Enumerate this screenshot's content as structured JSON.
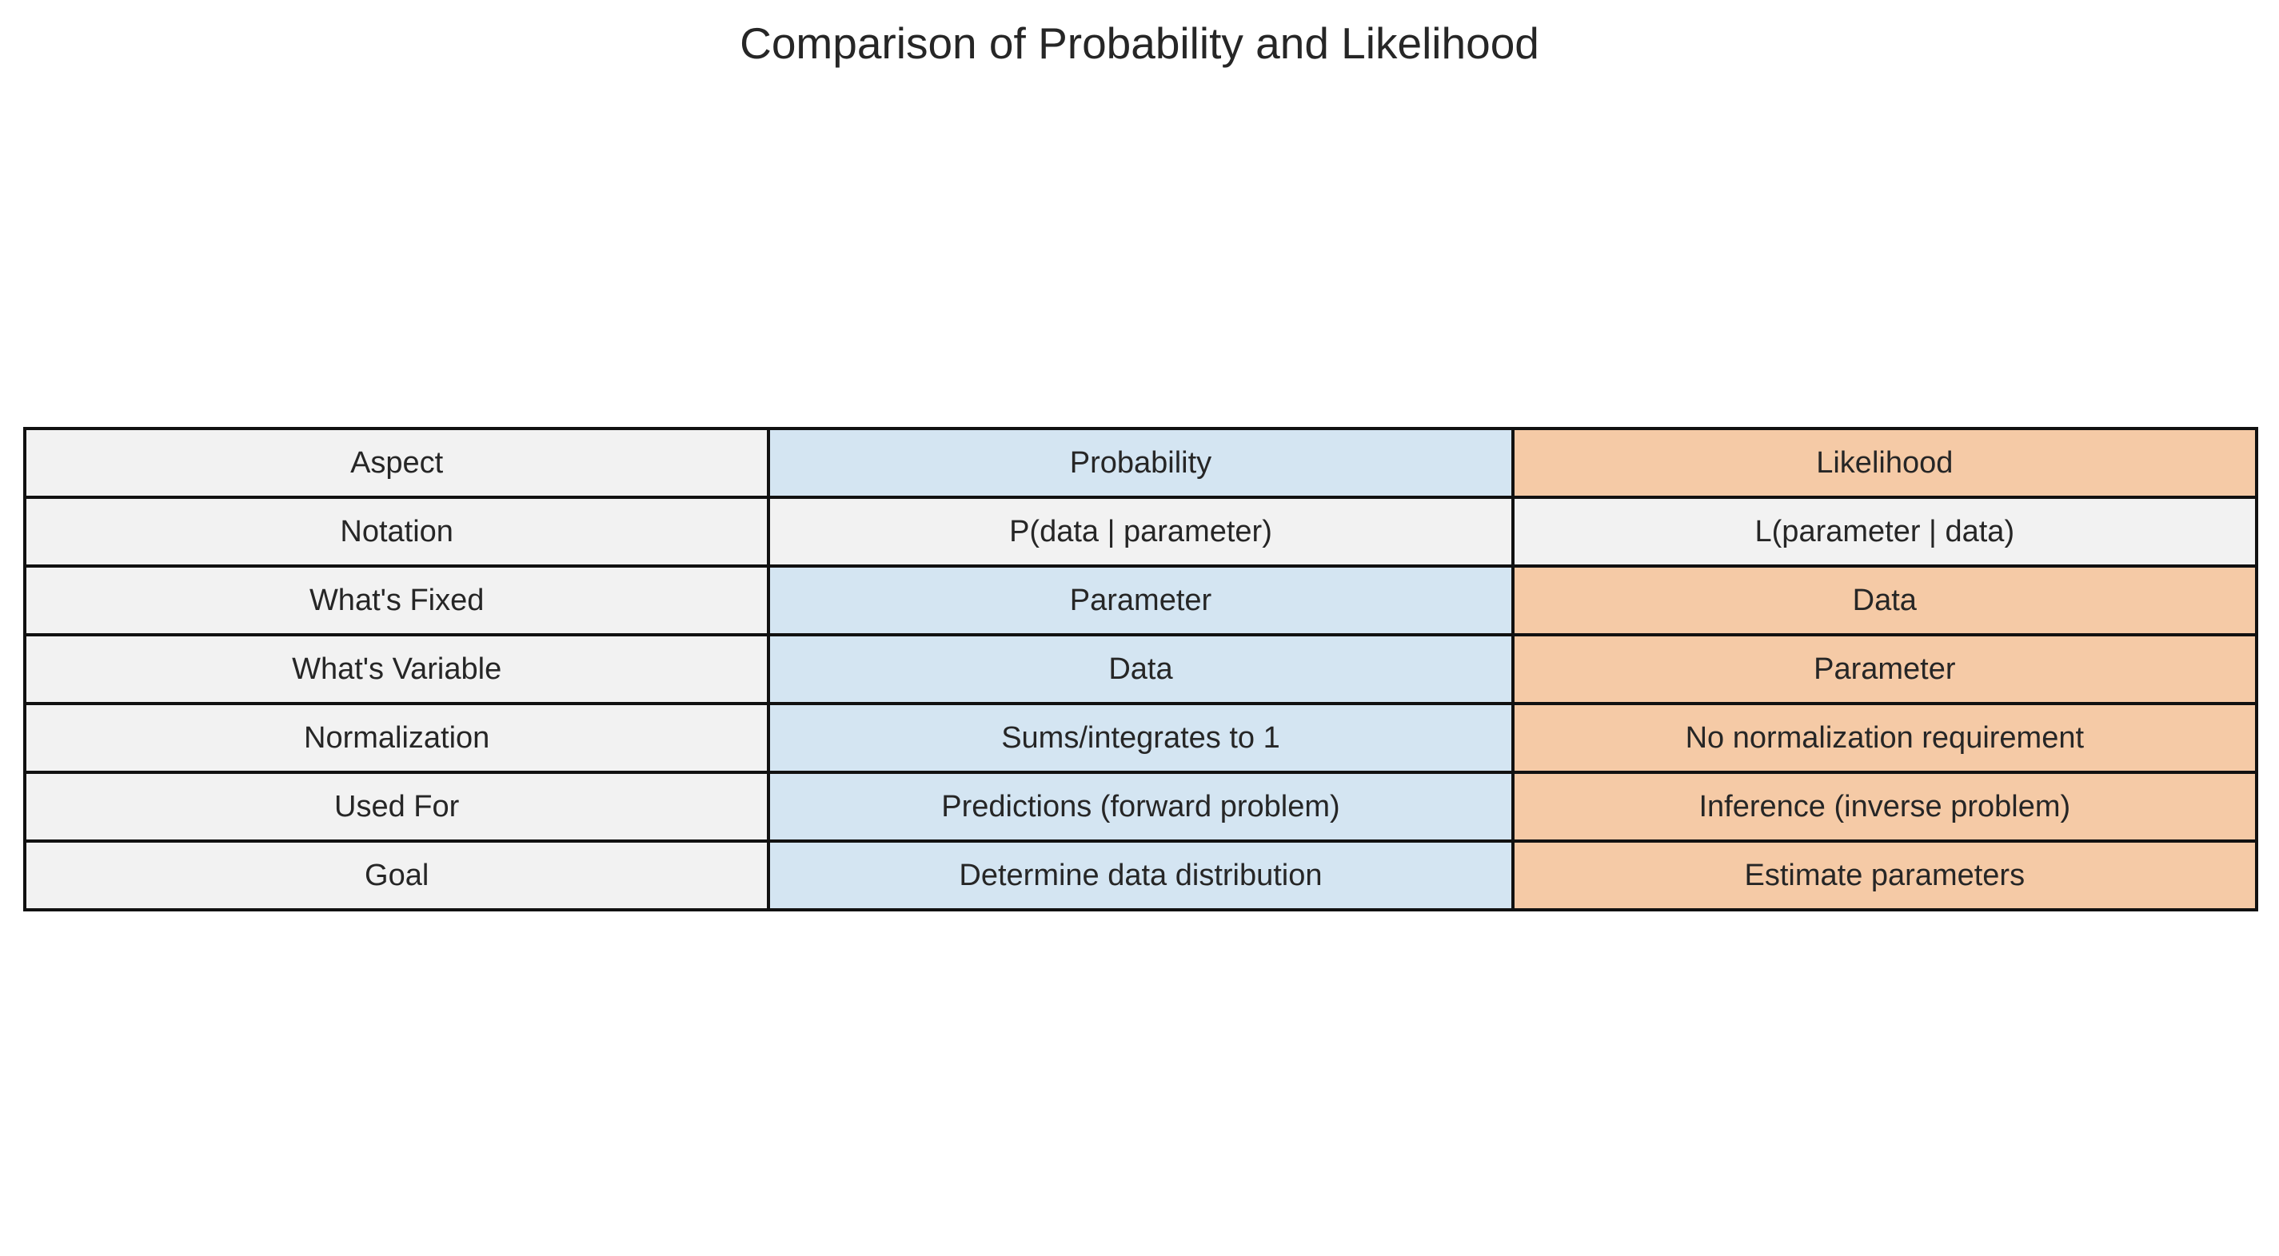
{
  "chart_data": {
    "type": "table",
    "title": "Comparison of Probability and Likelihood",
    "columns": [
      "Aspect",
      "Probability",
      "Likelihood"
    ],
    "rows": [
      [
        "Notation",
        "P(data | parameter)",
        "L(parameter | data)"
      ],
      [
        "What's Fixed",
        "Parameter",
        "Data"
      ],
      [
        "What's Variable",
        "Data",
        "Parameter"
      ],
      [
        "Normalization",
        "Sums/integrates to 1",
        "No normalization requirement"
      ],
      [
        "Used For",
        "Predictions (forward problem)",
        "Inference (inverse problem)"
      ],
      [
        "Goal",
        "Determine data distribution",
        "Estimate parameters"
      ]
    ]
  },
  "colors": {
    "neutral": "#f2f2f2",
    "probability": "#d4e5f2",
    "likelihood": "#f5caa6",
    "border": "#111111",
    "text": "#262626"
  }
}
